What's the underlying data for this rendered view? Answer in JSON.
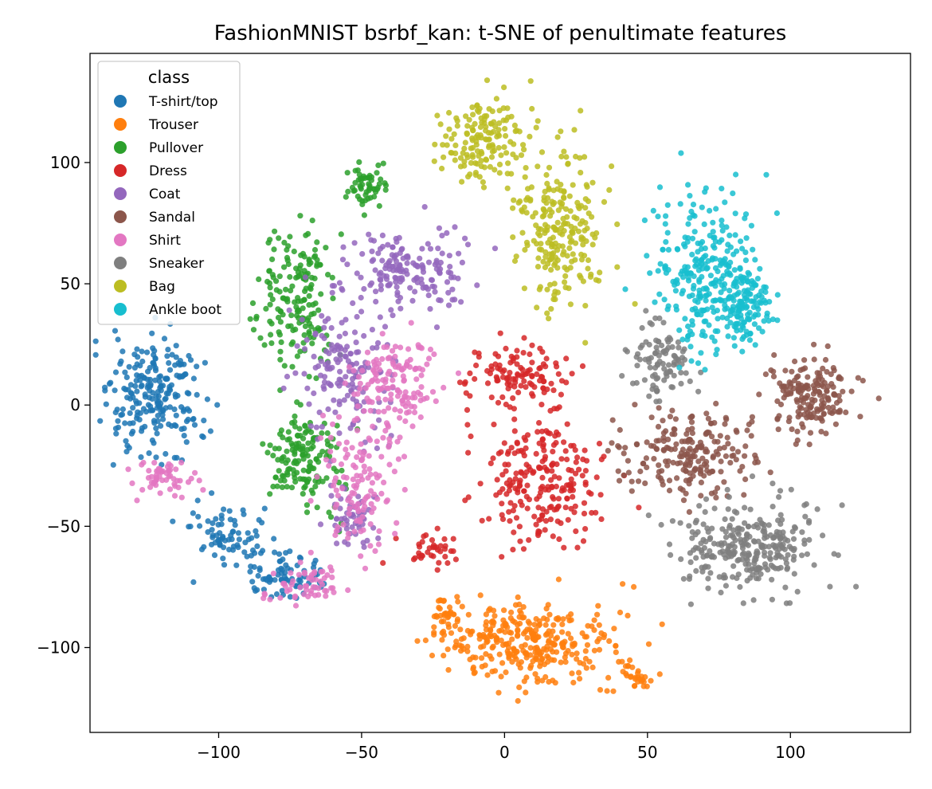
{
  "chart_data": {
    "type": "scatter",
    "title": "FashionMNIST bsrbf_kan: t-SNE of penultimate features",
    "xlabel": "",
    "ylabel": "",
    "xlim": [
      -145,
      142
    ],
    "ylim": [
      -135,
      145
    ],
    "xticks": [
      -100,
      -50,
      0,
      50,
      100
    ],
    "yticks": [
      -100,
      -50,
      0,
      50,
      100
    ],
    "xtick_labels": [
      "−100",
      "−50",
      "0",
      "50",
      "100"
    ],
    "ytick_labels": [
      "−100",
      "−50",
      "0",
      "50",
      "100"
    ],
    "grid": false,
    "legend": {
      "title": "class",
      "placement": "top-left",
      "entries": [
        "T-shirt/top",
        "Trouser",
        "Pullover",
        "Dress",
        "Coat",
        "Sandal",
        "Shirt",
        "Sneaker",
        "Bag",
        "Ankle boot"
      ]
    },
    "series": [
      {
        "name": "T-shirt/top",
        "color": "#1f77b4",
        "n": 380,
        "blobs": [
          [
            -122,
            2,
            11,
            17,
            0.6
          ],
          [
            -97,
            -55,
            8,
            8,
            0.2
          ],
          [
            -78,
            -70,
            10,
            6,
            0.2
          ]
        ]
      },
      {
        "name": "Trouser",
        "color": "#ff7f0e",
        "n": 380,
        "blobs": [
          [
            8,
            -98,
            20,
            11,
            0.82
          ],
          [
            45,
            -112,
            4,
            4,
            0.08
          ],
          [
            -20,
            -88,
            3,
            6,
            0.1
          ]
        ]
      },
      {
        "name": "Pullover",
        "color": "#2ca02c",
        "n": 380,
        "blobs": [
          [
            -72,
            45,
            8,
            20,
            0.45
          ],
          [
            -70,
            -20,
            8,
            15,
            0.4
          ],
          [
            -48,
            90,
            5,
            6,
            0.15
          ]
        ]
      },
      {
        "name": "Dress",
        "color": "#d62728",
        "n": 380,
        "blobs": [
          [
            12,
            -30,
            14,
            18,
            0.6
          ],
          [
            5,
            12,
            12,
            10,
            0.3
          ],
          [
            -25,
            -60,
            8,
            6,
            0.1
          ]
        ]
      },
      {
        "name": "Coat",
        "color": "#9467bd",
        "n": 380,
        "blobs": [
          [
            -35,
            55,
            15,
            12,
            0.45
          ],
          [
            -55,
            15,
            10,
            18,
            0.4
          ],
          [
            -55,
            -45,
            6,
            8,
            0.15
          ]
        ]
      },
      {
        "name": "Sandal",
        "color": "#8c564b",
        "n": 380,
        "blobs": [
          [
            65,
            -20,
            15,
            12,
            0.55
          ],
          [
            108,
            3,
            10,
            10,
            0.45
          ]
        ]
      },
      {
        "name": "Shirt",
        "color": "#e377c2",
        "n": 380,
        "blobs": [
          [
            -50,
            -30,
            10,
            20,
            0.35
          ],
          [
            -38,
            10,
            10,
            12,
            0.35
          ],
          [
            -120,
            -30,
            7,
            5,
            0.15
          ],
          [
            -70,
            -75,
            10,
            5,
            0.15
          ]
        ]
      },
      {
        "name": "Sneaker",
        "color": "#7f7f7f",
        "n": 380,
        "blobs": [
          [
            85,
            -58,
            15,
            12,
            0.75
          ],
          [
            55,
            18,
            8,
            10,
            0.25
          ]
        ]
      },
      {
        "name": "Bag",
        "color": "#bcbd22",
        "n": 380,
        "blobs": [
          [
            -8,
            108,
            10,
            12,
            0.4
          ],
          [
            20,
            72,
            10,
            22,
            0.6
          ]
        ]
      },
      {
        "name": "Ankle boot",
        "color": "#17becf",
        "n": 380,
        "blobs": [
          [
            70,
            55,
            12,
            22,
            0.7
          ],
          [
            85,
            40,
            6,
            10,
            0.3
          ]
        ]
      }
    ]
  }
}
